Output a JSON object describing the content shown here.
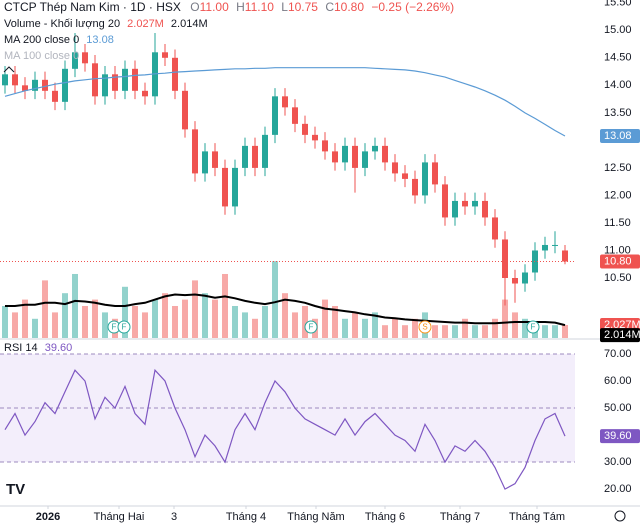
{
  "chart_data": [
    {
      "type": "candlestick",
      "title": "CTCP Thép Nam Kim · 1D · HSX",
      "ohlc_header": [
        [
          "O",
          "11.00"
        ],
        [
          "H",
          "11.10"
        ],
        [
          "L",
          "10.75"
        ],
        [
          "C",
          "10.80"
        ]
      ],
      "change": "−0.25 (−2.26%)",
      "up_color": "#26a69a",
      "down_color": "#ef5350",
      "open": [
        14.0,
        14.2,
        14.0,
        13.9,
        14.1,
        13.9,
        13.7,
        14.3,
        14.6,
        14.4,
        13.8,
        14.2,
        13.9,
        14.3,
        13.9,
        13.8,
        14.6,
        14.5,
        13.9,
        13.2,
        12.4,
        12.8,
        12.5,
        11.8,
        12.5,
        12.9,
        12.5,
        13.1,
        13.8,
        13.6,
        13.3,
        13.1,
        13.0,
        12.8,
        12.6,
        12.9,
        12.5,
        12.8,
        12.9,
        12.6,
        12.4,
        12.3,
        12.0,
        12.6,
        12.2,
        11.6,
        11.9,
        11.8,
        11.9,
        11.6,
        11.2,
        10.5,
        10.4,
        10.6,
        11.0,
        11.1,
        11.0
      ],
      "high": [
        14.35,
        14.35,
        14.15,
        14.25,
        14.25,
        14.05,
        14.45,
        14.95,
        14.75,
        14.55,
        14.35,
        14.35,
        14.45,
        14.45,
        14.05,
        14.95,
        14.75,
        14.65,
        14.05,
        13.35,
        12.95,
        12.95,
        12.65,
        12.65,
        13.05,
        13.05,
        13.25,
        13.95,
        13.95,
        13.75,
        13.45,
        13.25,
        13.15,
        12.95,
        13.05,
        13.05,
        12.95,
        13.05,
        13.05,
        12.75,
        12.55,
        12.45,
        12.75,
        12.75,
        12.35,
        12.05,
        12.05,
        12.05,
        12.05,
        11.75,
        11.35,
        10.65,
        10.75,
        11.15,
        11.25,
        11.35,
        11.1
      ],
      "low": [
        13.85,
        13.85,
        13.75,
        13.75,
        13.75,
        13.55,
        13.55,
        14.15,
        14.25,
        13.65,
        13.65,
        13.75,
        13.75,
        13.75,
        13.65,
        13.65,
        14.35,
        13.75,
        13.05,
        12.25,
        12.25,
        12.35,
        11.65,
        11.65,
        12.35,
        12.35,
        12.35,
        12.95,
        13.45,
        13.15,
        12.95,
        12.85,
        12.65,
        12.45,
        12.45,
        12.05,
        12.35,
        12.65,
        12.45,
        12.25,
        12.15,
        11.85,
        11.85,
        12.05,
        11.45,
        11.45,
        11.65,
        11.65,
        11.45,
        11.05,
        10.0,
        10.05,
        10.25,
        10.45,
        10.85,
        10.95,
        10.75
      ],
      "close": [
        14.2,
        14.0,
        13.9,
        14.1,
        13.9,
        13.7,
        14.3,
        14.6,
        14.4,
        13.8,
        14.2,
        13.9,
        14.3,
        13.9,
        13.8,
        14.6,
        14.5,
        13.9,
        13.2,
        12.4,
        12.8,
        12.5,
        11.8,
        12.5,
        12.9,
        12.5,
        13.1,
        13.8,
        13.6,
        13.3,
        13.1,
        13.0,
        12.8,
        12.6,
        12.9,
        12.5,
        12.8,
        12.9,
        12.6,
        12.4,
        12.3,
        12.0,
        12.6,
        12.2,
        11.6,
        11.9,
        11.8,
        11.9,
        11.6,
        11.2,
        10.5,
        10.4,
        10.6,
        11.0,
        11.1,
        11.1,
        10.8
      ],
      "close_label": "10.80",
      "ma": {
        "name": "MA 200 close 0",
        "color": "#5b9bd5",
        "value_label": "13.08",
        "values": [
          13.8,
          13.85,
          13.9,
          13.94,
          13.98,
          14.02,
          14.05,
          14.08,
          14.1,
          14.12,
          14.13,
          14.15,
          14.16,
          14.18,
          14.19,
          14.21,
          14.22,
          14.24,
          14.25,
          14.26,
          14.27,
          14.28,
          14.29,
          14.3,
          14.3,
          14.31,
          14.31,
          14.32,
          14.32,
          14.32,
          14.32,
          14.32,
          14.32,
          14.32,
          14.32,
          14.32,
          14.32,
          14.31,
          14.3,
          14.29,
          14.28,
          14.26,
          14.23,
          14.19,
          14.15,
          14.09,
          14.03,
          13.97,
          13.9,
          13.82,
          13.73,
          13.62,
          13.5,
          13.4,
          13.29,
          13.18,
          13.08
        ]
      },
      "ma_hidden": {
        "name": "MA 100 close 0"
      },
      "volume": {
        "name": "Volume - Khối lượng 20",
        "vlim": [
          0,
          52.8
        ],
        "values": [
          5,
          4,
          6,
          3,
          9,
          4,
          7,
          10,
          5,
          6,
          4,
          3,
          8,
          5,
          4,
          6,
          7,
          5,
          6,
          9,
          7,
          6,
          10,
          5,
          4,
          3,
          5,
          12,
          7,
          4,
          5,
          3,
          6,
          5,
          3,
          4,
          3,
          4,
          2,
          3,
          2,
          3,
          4,
          2,
          2,
          2,
          3,
          2,
          2,
          3,
          6,
          4,
          3,
          2,
          2,
          2,
          2.027
        ],
        "value_label": "2.027M",
        "ma_color": "#000000",
        "ma_values": [
          5,
          5,
          5.2,
          5.2,
          5.5,
          5.5,
          5.3,
          5.8,
          5.7,
          5.5,
          5.2,
          5,
          5,
          5.3,
          5.5,
          6,
          6.5,
          6.8,
          6.7,
          6.8,
          6.6,
          6.3,
          6.5,
          6.2,
          5.8,
          5.5,
          5.3,
          5.6,
          6,
          5.8,
          5.5,
          5,
          4.6,
          4.4,
          4.2,
          4,
          3.7,
          3.5,
          3.2,
          3.1,
          2.9,
          2.8,
          2.7,
          2.6,
          2.5,
          2.4,
          2.4,
          2.3,
          2.3,
          2.3,
          2.4,
          2.5,
          2.5,
          2.5,
          2.5,
          2.4,
          2.014
        ],
        "ma_value_label": "2.014M"
      },
      "markers": [
        {
          "x": 10.9,
          "label": "F"
        },
        {
          "x": 11.9,
          "label": "F"
        },
        {
          "x": 30.6,
          "label": "F"
        },
        {
          "x": 42,
          "label": "S"
        },
        {
          "x": 52.8,
          "label": "F"
        }
      ],
      "xlim": [
        -0.5,
        57
      ],
      "xticks": [
        {
          "value": 4.3,
          "label": "2026"
        },
        {
          "value": 11.4,
          "label": "Tháng Hai"
        },
        {
          "value": 16.9,
          "label": "3"
        },
        {
          "value": 24.1,
          "label": "Tháng 4"
        },
        {
          "value": 31.1,
          "label": "Tháng Năm"
        },
        {
          "value": 38,
          "label": "Tháng 6"
        },
        {
          "value": 45.5,
          "label": "Tháng 7"
        },
        {
          "value": 53.2,
          "label": "Tháng Tám"
        }
      ],
      "ylim": [
        9.41,
        15.55
      ],
      "yticks": [
        {
          "value": 15.5,
          "label": "15.50"
        },
        {
          "value": 15,
          "label": "15.00"
        },
        {
          "value": 14.5,
          "label": "14.50"
        },
        {
          "value": 14,
          "label": "14.00"
        },
        {
          "value": 13.5,
          "label": "13.50"
        },
        {
          "value": 12.5,
          "label": "12.50"
        },
        {
          "value": 12,
          "label": "12.00"
        },
        {
          "value": 11.5,
          "label": "11.50"
        },
        {
          "value": 11,
          "label": "11.00"
        },
        {
          "value": 10.5,
          "label": "10.50"
        }
      ]
    },
    {
      "type": "line",
      "name": "RSI 14",
      "color": "#7e57c2",
      "value_label": "39.60",
      "values": [
        42,
        48,
        40,
        45,
        52,
        48,
        56,
        64,
        60,
        46,
        54,
        50,
        58,
        48,
        44,
        64,
        60,
        50,
        42,
        32,
        40,
        36,
        30,
        42,
        48,
        42,
        52,
        60,
        56,
        50,
        46,
        44,
        42,
        40,
        46,
        40,
        45,
        48,
        44,
        40,
        38,
        34,
        44,
        38,
        30,
        36,
        34,
        38,
        34,
        28,
        20,
        22,
        28,
        38,
        46,
        48,
        39.6
      ],
      "levels": [
        70,
        50,
        30
      ],
      "ylim": [
        14.1,
        75.2
      ],
      "yticks": [
        {
          "value": 70,
          "label": "70.00"
        },
        {
          "value": 60,
          "label": "60.00"
        },
        {
          "value": 50,
          "label": "50.00"
        },
        {
          "value": 40,
          "label": "40.00"
        },
        {
          "value": 30,
          "label": "30.00"
        },
        {
          "value": 20,
          "label": "20.00"
        }
      ]
    }
  ]
}
